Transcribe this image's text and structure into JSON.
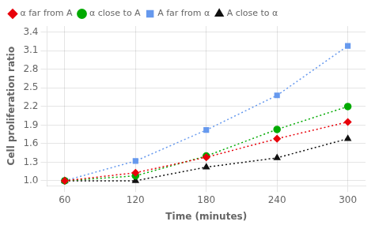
{
  "chart_data": {
    "type": "line",
    "x": [
      60,
      120,
      180,
      240,
      300
    ],
    "series": [
      {
        "name": "α far from A",
        "color": "#e8000a",
        "marker": "diamond",
        "line_style": "dotted",
        "values": [
          1.0,
          1.13,
          1.38,
          1.68,
          1.95
        ]
      },
      {
        "name": "α close to A",
        "color": "#00aa00",
        "marker": "circle",
        "line_style": "dotted",
        "values": [
          1.0,
          1.08,
          1.4,
          1.83,
          2.2
        ]
      },
      {
        "name": "A far from α",
        "color": "#6699ee",
        "marker": "square",
        "line_style": "dotted",
        "values": [
          1.0,
          1.32,
          1.82,
          2.38,
          3.18
        ]
      },
      {
        "name": "A close to α",
        "color": "#111111",
        "marker": "triangle",
        "line_style": "dotted",
        "values": [
          1.0,
          1.0,
          1.22,
          1.37,
          1.68
        ]
      }
    ],
    "xlabel": "Time (minutes)",
    "ylabel": "Cell proliferation ratio",
    "xlim": [
      45,
      315
    ],
    "ylim": [
      0.92,
      3.5
    ],
    "xticks": [
      60,
      120,
      180,
      240,
      300
    ],
    "yticks": [
      {
        "value": 1.0,
        "label": "1.0"
      },
      1.3,
      1.6,
      1.9,
      2.2,
      2.5,
      2.8,
      3.1,
      3.4
    ],
    "grid": true,
    "legend": "upper left"
  }
}
